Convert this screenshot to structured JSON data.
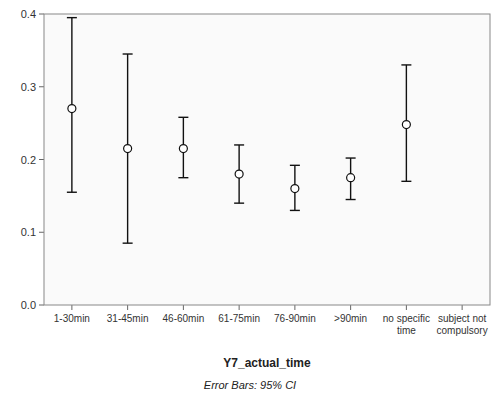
{
  "chart_data": {
    "type": "errorbar",
    "categories": [
      "1-30min",
      "31-45min",
      "46-60min",
      "61-75min",
      "76-90min",
      ">90min",
      "no specific\ntime",
      "subject not\ncompulsory"
    ],
    "values": [
      0.27,
      0.215,
      0.215,
      0.18,
      0.16,
      0.175,
      0.248,
      null
    ],
    "ci_lower": [
      0.155,
      0.085,
      0.175,
      0.14,
      0.13,
      0.145,
      0.17,
      null
    ],
    "ci_upper": [
      0.395,
      0.345,
      0.258,
      0.22,
      0.192,
      0.202,
      0.33,
      null
    ],
    "xlabel": "Y7_actual_time",
    "footnote": "Error Bars: 95% CI",
    "ylim": [
      0.0,
      0.4
    ],
    "yticks": [
      {
        "value": 0.0,
        "label": "0.0"
      },
      0.1,
      0.2,
      0.3,
      0.4
    ],
    "color": "#111111",
    "marker": "circle",
    "grid": false
  }
}
